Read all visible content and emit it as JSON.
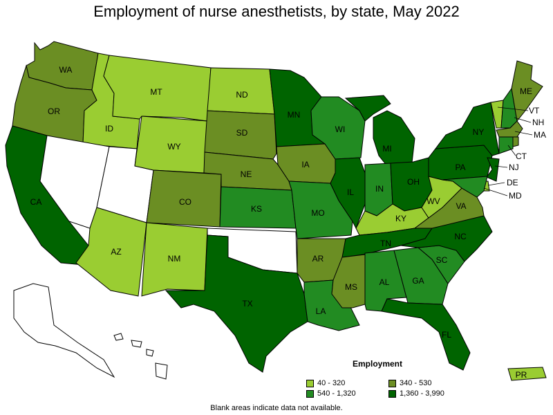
{
  "title": "Employment of nurse anesthetists, by state, May 2022",
  "legend": {
    "title": "Employment",
    "items": [
      {
        "label": "40 - 320",
        "color": "#9acd32"
      },
      {
        "label": "340 - 530",
        "color": "#6b8e23"
      },
      {
        "label": "540 - 1,320",
        "color": "#228b22"
      },
      {
        "label": "1,360 - 3,990",
        "color": "#006400"
      }
    ]
  },
  "footnote": "Blank areas indicate data not available.",
  "no_data_color": "#ffffff",
  "states": {
    "WA": {
      "label": "WA",
      "bin": 1
    },
    "OR": {
      "label": "OR",
      "bin": 1
    },
    "CA": {
      "label": "CA",
      "bin": 3
    },
    "ID": {
      "label": "ID",
      "bin": 0
    },
    "NV": {
      "label": "",
      "bin": null
    },
    "UT": {
      "label": "",
      "bin": null
    },
    "AZ": {
      "label": "AZ",
      "bin": 0
    },
    "MT": {
      "label": "MT",
      "bin": 0
    },
    "WY": {
      "label": "WY",
      "bin": 0
    },
    "CO": {
      "label": "CO",
      "bin": 1
    },
    "NM": {
      "label": "NM",
      "bin": 0
    },
    "ND": {
      "label": "ND",
      "bin": 0
    },
    "SD": {
      "label": "SD",
      "bin": 1
    },
    "NE": {
      "label": "NE",
      "bin": 1
    },
    "KS": {
      "label": "KS",
      "bin": 2
    },
    "OK": {
      "label": "",
      "bin": null
    },
    "TX": {
      "label": "TX",
      "bin": 3
    },
    "MN": {
      "label": "MN",
      "bin": 3
    },
    "IA": {
      "label": "IA",
      "bin": 1
    },
    "MO": {
      "label": "MO",
      "bin": 2
    },
    "AR": {
      "label": "AR",
      "bin": 1
    },
    "LA": {
      "label": "LA",
      "bin": 2
    },
    "WI": {
      "label": "WI",
      "bin": 2
    },
    "IL": {
      "label": "IL",
      "bin": 3
    },
    "MI": {
      "label": "MI",
      "bin": 3
    },
    "IN": {
      "label": "IN",
      "bin": 2
    },
    "OH": {
      "label": "OH",
      "bin": 3
    },
    "KY": {
      "label": "KY",
      "bin": 0
    },
    "TN": {
      "label": "TN",
      "bin": 3
    },
    "MS": {
      "label": "MS",
      "bin": 1
    },
    "AL": {
      "label": "AL",
      "bin": 2
    },
    "GA": {
      "label": "GA",
      "bin": 2
    },
    "FL": {
      "label": "FL",
      "bin": 3
    },
    "SC": {
      "label": "SC",
      "bin": 2
    },
    "NC": {
      "label": "NC",
      "bin": 3
    },
    "VA": {
      "label": "VA",
      "bin": 1
    },
    "WV": {
      "label": "WV",
      "bin": 0
    },
    "PA": {
      "label": "PA",
      "bin": 3
    },
    "NY": {
      "label": "NY",
      "bin": 3
    },
    "VT": {
      "label": "VT",
      "bin": 0
    },
    "NH": {
      "label": "NH",
      "bin": 2
    },
    "ME": {
      "label": "ME",
      "bin": 1
    },
    "MA": {
      "label": "MA",
      "bin": 1
    },
    "CT": {
      "label": "CT",
      "bin": 2
    },
    "RI": {
      "label": "RI",
      "bin": 1
    },
    "NJ": {
      "label": "NJ",
      "bin": 3
    },
    "DE": {
      "label": "DE",
      "bin": 0
    },
    "MD": {
      "label": "MD",
      "bin": 2
    },
    "AK": {
      "label": "",
      "bin": null
    },
    "HI": {
      "label": "",
      "bin": null
    },
    "PR": {
      "label": "PR",
      "bin": 0
    }
  }
}
